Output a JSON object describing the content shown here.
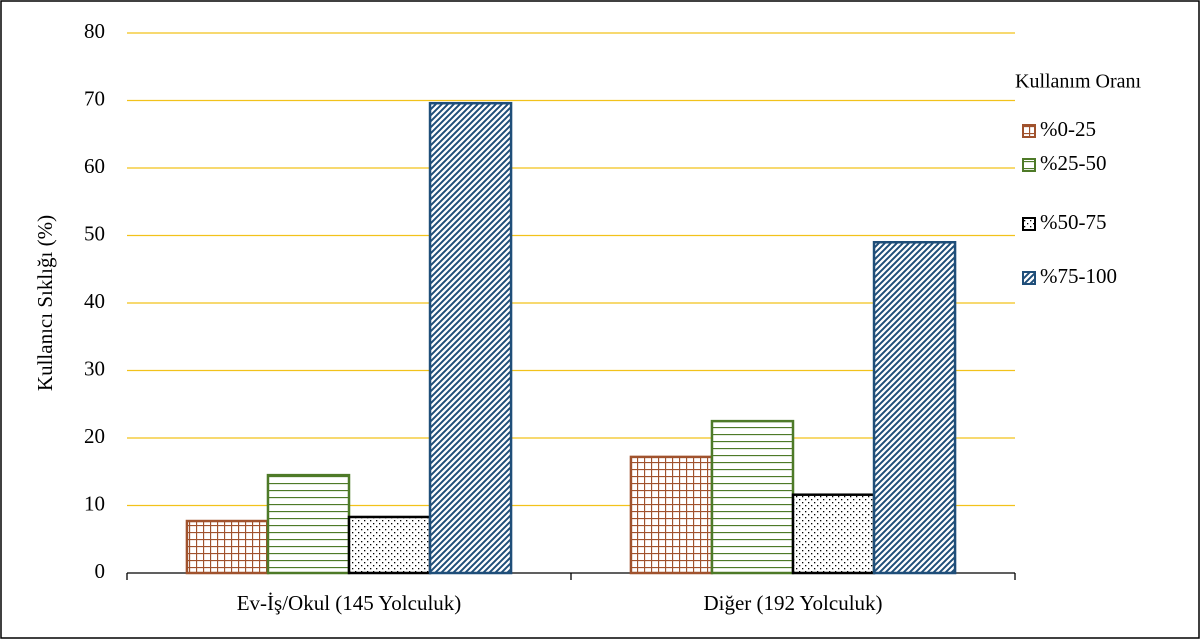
{
  "chart_data": {
    "type": "bar",
    "y_label": "Kullanıcı Sıklığı (%)",
    "legend_title": "Kullanım Oranı",
    "categories": [
      "Ev-İş/Okul (145 Yolculuk)",
      "Diğer (192 Yolculuk)"
    ],
    "series": [
      {
        "name": "%0-25",
        "color": "#a0522d",
        "values": [
          7.7,
          17.2
        ]
      },
      {
        "name": "%25-50",
        "color": "#4e7a28",
        "values": [
          14.5,
          22.5
        ]
      },
      {
        "name": "%50-75",
        "color": "#000000",
        "values": [
          8.3,
          11.6
        ]
      },
      {
        "name": "%75-100",
        "color": "#1f4e79",
        "values": [
          69.6,
          49.0
        ]
      }
    ],
    "ylim": [
      0,
      80
    ],
    "yticks": [
      0,
      10,
      20,
      30,
      40,
      50,
      60,
      70,
      80
    ],
    "grid": true,
    "grid_color": "#f2c21b",
    "legend": "right"
  }
}
